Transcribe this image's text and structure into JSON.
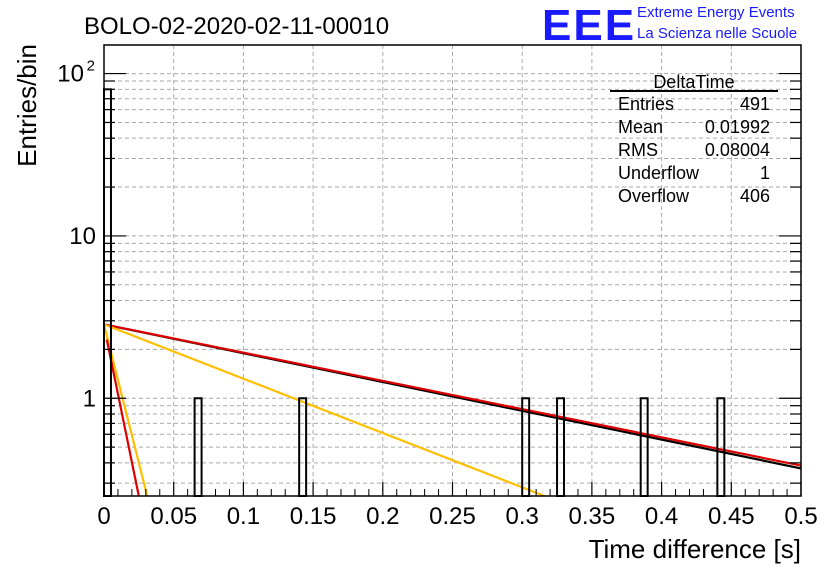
{
  "chart_data": {
    "type": "bar",
    "title": "BOLO-02-2020-02-11-00010",
    "xlabel": "Time difference [s]",
    "ylabel": "Entries/bin",
    "xlim": [
      0,
      0.5
    ],
    "ylim": [
      0.25,
      150
    ],
    "yscale": "log",
    "grid": true,
    "x_ticks": [
      "0",
      "0.05",
      "0.1",
      "0.15",
      "0.2",
      "0.25",
      "0.3",
      "0.35",
      "0.4",
      "0.45",
      "0.5"
    ],
    "y_ticks": [
      {
        "value": 1,
        "label": "1"
      },
      {
        "value": 10,
        "label": "10"
      },
      {
        "value": 100,
        "label": "10",
        "exponent": "2"
      }
    ],
    "bin_width": 0.005,
    "bins": [
      {
        "x": 0.0,
        "value": 80
      },
      {
        "x": 0.065,
        "value": 1
      },
      {
        "x": 0.14,
        "value": 1
      },
      {
        "x": 0.3,
        "value": 1
      },
      {
        "x": 0.325,
        "value": 1
      },
      {
        "x": 0.385,
        "value": 1
      },
      {
        "x": 0.44,
        "value": 1
      }
    ],
    "fit_lines": [
      {
        "color": "#000000",
        "points": [
          [
            0,
            2.85
          ],
          [
            0.5,
            0.37
          ]
        ]
      },
      {
        "color": "#dd0000",
        "points": [
          [
            0,
            2.85
          ],
          [
            0.5,
            0.385
          ]
        ]
      },
      {
        "color": "#ffbf00",
        "points": [
          [
            0,
            2.85
          ],
          [
            0.316,
            0.25
          ]
        ]
      },
      {
        "color": "#ffbf00",
        "points": [
          [
            0,
            2.85
          ],
          [
            0.031,
            0.25
          ]
        ]
      },
      {
        "color": "#dd0000",
        "points": [
          [
            0.002,
            2.3
          ],
          [
            0.025,
            0.25
          ]
        ]
      }
    ],
    "stats_box": {
      "title": "DeltaTime",
      "rows": [
        {
          "label": "Entries",
          "value": "491"
        },
        {
          "label": "Mean",
          "value": "0.01992"
        },
        {
          "label": "RMS",
          "value": "0.08004"
        },
        {
          "label": "Underflow",
          "value": "1"
        },
        {
          "label": "Overflow",
          "value": "406"
        }
      ]
    }
  },
  "logo": {
    "letters": "EEE",
    "line1": "Extreme Energy Events",
    "line2": "La Scienza nelle Scuole"
  }
}
